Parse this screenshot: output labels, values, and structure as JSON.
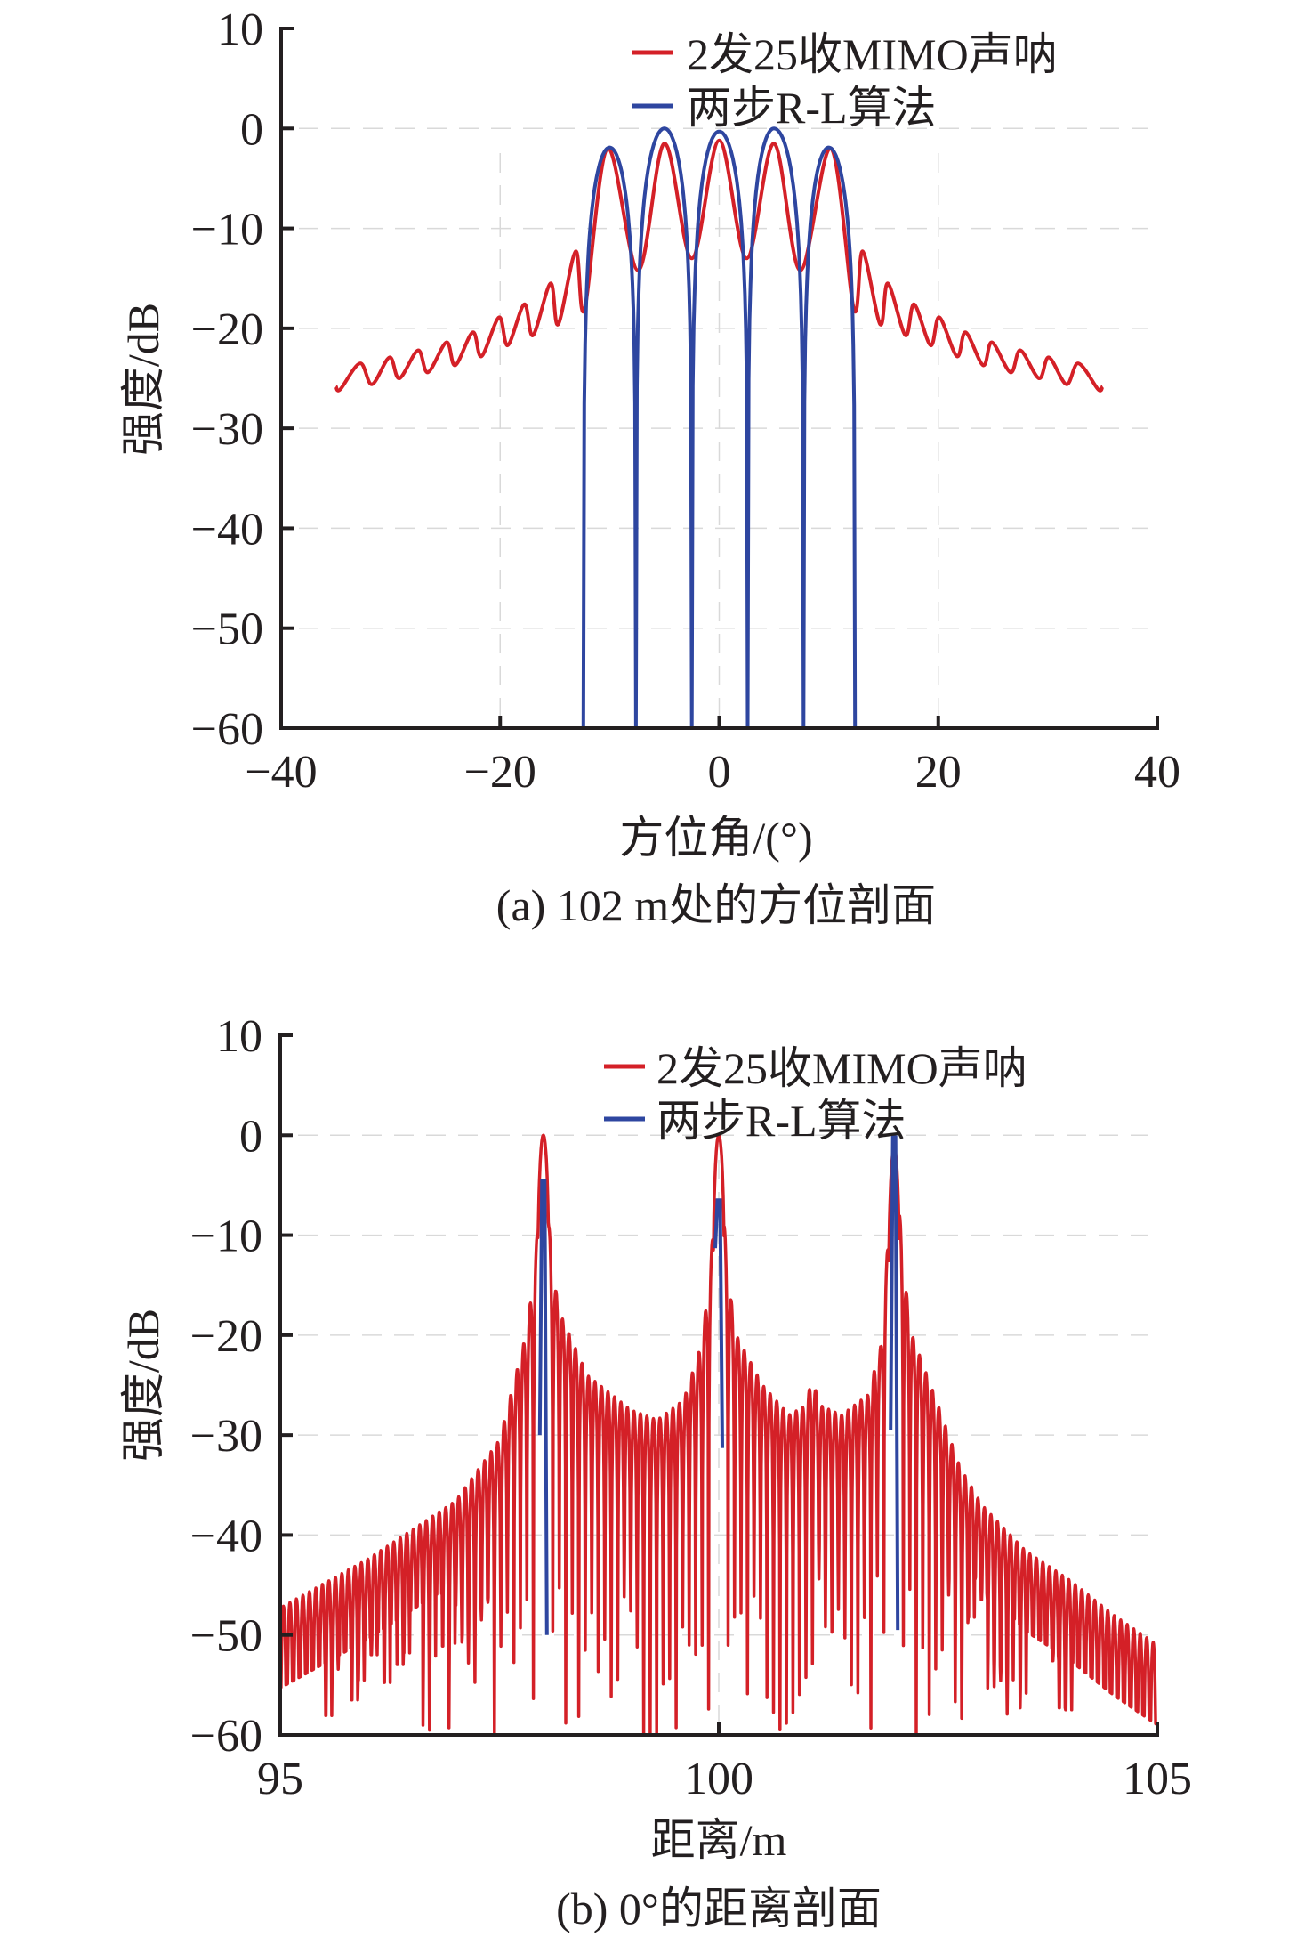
{
  "colors": {
    "red_series": "#d42027",
    "blue_series": "#2e46a0",
    "axis": "#231f20"
  },
  "chart_data": [
    {
      "type": "line",
      "id": "a",
      "caption": "(a) 102 m处的方位剖面",
      "xlabel": "方位角/(°)",
      "ylabel": "强度/dB",
      "xlim": [
        -40,
        40
      ],
      "ylim": [
        -60,
        10
      ],
      "xticks": [
        -40,
        -20,
        0,
        20,
        40
      ],
      "xtick_labels": [
        "−40",
        "−20",
        "0",
        "20",
        "40"
      ],
      "yticks": [
        10,
        0,
        -10,
        -20,
        -30,
        -40,
        -50,
        -60
      ],
      "ytick_labels": [
        "10",
        "0",
        "−10",
        "−20",
        "−30",
        "−40",
        "−50",
        "−60"
      ],
      "grid": "faint dashed",
      "legend_position": "top-right",
      "legend": [
        "2发25收MIMO声呐",
        "两步R-L算法"
      ],
      "series": [
        {
          "name": "2发25收MIMO声呐",
          "color": "red",
          "points": [
            [
              -35,
              -25.8
            ],
            [
              -34.6,
              -26.1
            ],
            [
              -32.8,
              -23.5
            ],
            [
              -31.7,
              -25.6
            ],
            [
              -30.1,
              -22.9
            ],
            [
              -29.2,
              -25.0
            ],
            [
              -27.5,
              -22.2
            ],
            [
              -26.6,
              -24.4
            ],
            [
              -24.9,
              -21.4
            ],
            [
              -24.1,
              -23.7
            ],
            [
              -22.5,
              -20.4
            ],
            [
              -21.7,
              -22.8
            ],
            [
              -20.1,
              -18.9
            ],
            [
              -19.3,
              -21.7
            ],
            [
              -17.8,
              -17.6
            ],
            [
              -17.0,
              -20.7
            ],
            [
              -15.4,
              -15.5
            ],
            [
              -14.7,
              -19.6
            ],
            [
              -13.1,
              -12.3
            ],
            [
              -12.3,
              -18.1
            ],
            [
              -10.2,
              -2.0
            ],
            [
              -7.4,
              -14.2
            ],
            [
              -5.0,
              -1.5
            ],
            [
              -2.5,
              -13.0
            ],
            [
              0.0,
              -1.2
            ],
            [
              2.5,
              -13.0
            ],
            [
              5.0,
              -1.5
            ],
            [
              7.4,
              -14.2
            ],
            [
              10.2,
              -2.0
            ],
            [
              12.3,
              -18.1
            ],
            [
              13.1,
              -12.3
            ],
            [
              14.7,
              -19.6
            ],
            [
              15.4,
              -15.5
            ],
            [
              17.0,
              -20.7
            ],
            [
              17.8,
              -17.6
            ],
            [
              19.3,
              -21.7
            ],
            [
              20.1,
              -18.9
            ],
            [
              21.7,
              -22.8
            ],
            [
              22.5,
              -20.4
            ],
            [
              24.1,
              -23.7
            ],
            [
              24.9,
              -21.4
            ],
            [
              26.6,
              -24.4
            ],
            [
              27.5,
              -22.2
            ],
            [
              29.2,
              -25.0
            ],
            [
              30.1,
              -22.9
            ],
            [
              31.7,
              -25.6
            ],
            [
              32.8,
              -23.5
            ],
            [
              34.6,
              -26.1
            ],
            [
              35,
              -25.8
            ]
          ]
        },
        {
          "name": "两步R-L算法",
          "color": "blue",
          "peaks": [
            [
              -10,
              -1.9
            ],
            [
              -5,
              0.0
            ],
            [
              0,
              -0.3
            ],
            [
              5,
              0.0
            ],
            [
              10,
              -1.9
            ]
          ],
          "nulls": [
            -12.4,
            -7.6,
            -2.5,
            2.6,
            7.7,
            12.4
          ],
          "floor": -60
        }
      ]
    },
    {
      "type": "line",
      "id": "b",
      "caption": "(b) 0°的距离剖面",
      "xlabel": "距离/m",
      "ylabel": "强度/dB",
      "xlim": [
        95,
        105
      ],
      "ylim": [
        -60,
        10
      ],
      "xticks": [
        95,
        100,
        105
      ],
      "xtick_labels": [
        "95",
        "100",
        "105"
      ],
      "yticks": [
        10,
        0,
        -10,
        -20,
        -30,
        -40,
        -50,
        -60
      ],
      "ytick_labels": [
        "10",
        "0",
        "−10",
        "−20",
        "−30",
        "−40",
        "−50",
        "−60"
      ],
      "grid": "faint dashed",
      "legend_position": "top-right",
      "legend": [
        "2发25收MIMO声呐",
        "两步R-L算法"
      ],
      "series": [
        {
          "name": "2发25收MIMO声呐",
          "color": "red",
          "ripple_period_m": 0.074,
          "peaks": [
            [
              98,
              0.0
            ],
            [
              100,
              0.0
            ],
            [
              102,
              -1.3
            ]
          ],
          "upper_envelope": [
            [
              95,
              -47.3
            ],
            [
              96,
              -42.4
            ],
            [
              97,
              -36.6
            ],
            [
              97.5,
              -30.5
            ],
            [
              97.8,
              -20
            ],
            [
              97.9,
              -13.7
            ],
            [
              98,
              0.0
            ],
            [
              98.1,
              -13.7
            ],
            [
              98.2,
              -18
            ],
            [
              98.5,
              -24
            ],
            [
              99,
              -27.5
            ],
            [
              99.3,
              -28.5
            ],
            [
              99.6,
              -26.5
            ],
            [
              99.8,
              -21
            ],
            [
              99.9,
              -14
            ],
            [
              100,
              0.0
            ],
            [
              100.1,
              -14
            ],
            [
              100.2,
              -20
            ],
            [
              100.5,
              -25
            ],
            [
              100.8,
              -28
            ],
            [
              101.0,
              -27
            ],
            [
              101.06,
              -24.1
            ],
            [
              101.15,
              -27
            ],
            [
              101.4,
              -28
            ],
            [
              101.7,
              -26
            ],
            [
              101.85,
              -21
            ],
            [
              101.9,
              -14.5
            ],
            [
              102,
              -1.3
            ],
            [
              102.13,
              -15.1
            ],
            [
              102.2,
              -19.9
            ],
            [
              102.5,
              -27
            ],
            [
              102.75,
              -33.2
            ],
            [
              103,
              -37
            ],
            [
              103.5,
              -41.6
            ],
            [
              104,
              -44.5
            ],
            [
              104.5,
              -48
            ],
            [
              105,
              -51
            ]
          ],
          "null_depth_range_db": [
            -60,
            -44
          ]
        },
        {
          "name": "两步R-L算法",
          "color": "blue",
          "spikes": [
            {
              "x": 98,
              "top": -4.6,
              "bottom": -50
            },
            {
              "x": 100,
              "top": -6.5,
              "bottom": -31.3
            },
            {
              "x": 102,
              "top": -0.2,
              "bottom": -49.5
            }
          ]
        }
      ]
    }
  ]
}
